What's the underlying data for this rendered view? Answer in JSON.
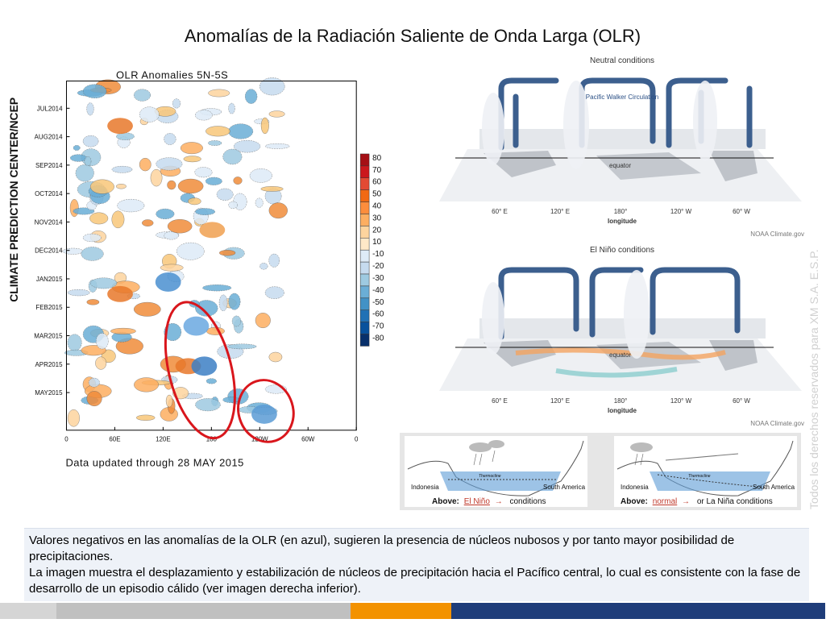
{
  "slide": {
    "title": "Anomalías de la Radiación Saliente de Onda Larga (OLR)",
    "watermark": "Todos los derechos reservados para XM S.A. E.S.P."
  },
  "hovmoller": {
    "side_label": "CLIMATE PREDICTION CENTER/NCEP",
    "plot_title": "OLR Anomalies 5N-5S",
    "y_labels": [
      "JUL2014",
      "AUG2014",
      "SEP2014",
      "OCT2014",
      "NOV2014",
      "DEC2014",
      "JAN2015",
      "FEB2015",
      "MAR2015",
      "APR2015",
      "MAY2015"
    ],
    "x_labels": [
      "0",
      "60E",
      "120E",
      "180",
      "120W",
      "60W",
      "0"
    ],
    "footer": "Data updated through 28 MAY 2015",
    "colorbar_labels": [
      "80",
      "70",
      "60",
      "50",
      "40",
      "30",
      "20",
      "10",
      "-10",
      "-20",
      "-30",
      "-40",
      "-50",
      "-60",
      "-70",
      "-80"
    ],
    "colorbar_colors": [
      "#a50f15",
      "#cb181d",
      "#e34a33",
      "#f16913",
      "#fd8d3c",
      "#fdae61",
      "#fdd49e",
      "#fee8c8",
      "#deebf7",
      "#c6dbef",
      "#9ecae1",
      "#6baed6",
      "#4292c6",
      "#2171b5",
      "#08519c",
      "#08306b"
    ]
  },
  "walker": {
    "neutral_title": "Neutral conditions",
    "neutral_circ": "Pacific Walker Circulation",
    "elnino_title": "El Niño conditions",
    "equator": "equator",
    "lon_ticks": [
      "60° E",
      "120° E",
      "180°",
      "120° W",
      "60° W"
    ],
    "longitude": "longitude",
    "credit": "NOAA Climate.gov"
  },
  "ocean": {
    "left": {
      "indonesia": "Indonesia",
      "south_america": "South America",
      "thermocline": "Thermocline",
      "above": "Above:",
      "link": "El Niño",
      "conditions": "conditions"
    },
    "right": {
      "indonesia": "Indonesia",
      "south_america": "South America",
      "thermocline": "Thermocline",
      "above": "Above:",
      "link": "normal",
      "conditions": "or La Niña conditions"
    }
  },
  "bottom": {
    "p1": "Valores negativos en las anomalías de la OLR (en azul), sugieren la presencia de núcleos nubosos y por tanto mayor posibilidad de precipitaciones.",
    "p2": "La imagen muestra el desplazamiento y estabilización de núcleos de precipitación hacia el Pacífico central, lo cual es consistente con la fase de desarrollo de un episodio cálido (ver imagen derecha inferior)."
  },
  "colors": {
    "orange_bar": "#f39200",
    "blue_bar": "#1f3d7a",
    "highlight_red": "#d9161c"
  }
}
